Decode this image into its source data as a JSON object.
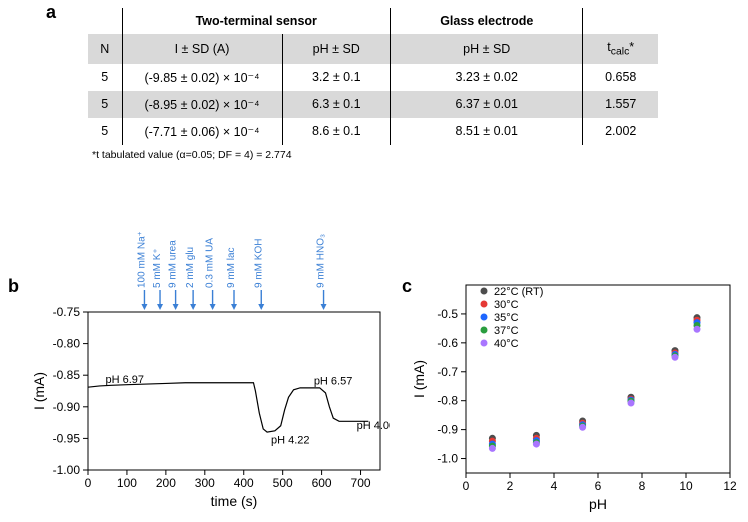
{
  "panel_labels": {
    "a": "a",
    "b": "b",
    "c": "c"
  },
  "table": {
    "top_headers": [
      "Two-terminal sensor",
      "Glass electrode",
      ""
    ],
    "sub_headers": [
      "N",
      "I ± SD (A)",
      "pH ± SD",
      "pH ± SD",
      "t_calc*"
    ],
    "rows": [
      {
        "N": "5",
        "I": "(-9.85 ± 0.02) × 10⁻⁴",
        "pH1": "3.2 ± 0.1",
        "pH2": "3.23 ± 0.02",
        "t": "0.658",
        "alt": false
      },
      {
        "N": "5",
        "I": "(-8.95 ± 0.02) × 10⁻⁴",
        "pH1": "6.3 ± 0.1",
        "pH2": "6.37 ± 0.01",
        "t": "1.557",
        "alt": true
      },
      {
        "N": "5",
        "I": "(-7.71 ± 0.06) × 10⁻⁴",
        "pH1": "8.6 ± 0.1",
        "pH2": "8.51 ± 0.01",
        "t": "2.002",
        "alt": false
      }
    ],
    "footnote": "*t tabulated value (α=0.05; DF = 4) = 2.774"
  },
  "chartB": {
    "type": "line",
    "xlabel": "time (s)",
    "ylabel": "I (mA)",
    "xlim": [
      0,
      750
    ],
    "xtick_step": 100,
    "ylim": [
      -1.0,
      -0.75
    ],
    "ytick_step": 0.05,
    "label_fontsize": 14,
    "tick_fontsize": 12,
    "line_color": "#000000",
    "background_color": "#ffffff",
    "injections": [
      {
        "label": "100 mM Na⁺",
        "t": 145
      },
      {
        "label": "5 mM K⁺",
        "t": 185
      },
      {
        "label": "9 mM urea",
        "t": 225
      },
      {
        "label": "2 mM glu",
        "t": 270
      },
      {
        "label": "0.3 mM UA",
        "t": 320
      },
      {
        "label": "9 mM lac",
        "t": 375
      },
      {
        "label": "9 mM KOH",
        "t": 445
      },
      {
        "label": "9 mM HNO₃",
        "t": 605
      }
    ],
    "arrow_color": "#3a7fd5",
    "annotations": [
      {
        "text": "pH 6.97",
        "t": 45,
        "I": -0.862
      },
      {
        "text": "pH 4.22",
        "t": 470,
        "I": -0.958
      },
      {
        "text": "pH 6.57",
        "t": 580,
        "I": -0.865
      },
      {
        "text": "pH 4.00",
        "t": 690,
        "I": -0.935
      }
    ],
    "series": [
      {
        "t": 0,
        "I": -0.869
      },
      {
        "t": 30,
        "I": -0.867
      },
      {
        "t": 60,
        "I": -0.866
      },
      {
        "t": 100,
        "I": -0.865
      },
      {
        "t": 150,
        "I": -0.864
      },
      {
        "t": 200,
        "I": -0.863
      },
      {
        "t": 250,
        "I": -0.862
      },
      {
        "t": 300,
        "I": -0.862
      },
      {
        "t": 350,
        "I": -0.862
      },
      {
        "t": 400,
        "I": -0.862
      },
      {
        "t": 425,
        "I": -0.862
      },
      {
        "t": 430,
        "I": -0.875
      },
      {
        "t": 440,
        "I": -0.91
      },
      {
        "t": 450,
        "I": -0.935
      },
      {
        "t": 460,
        "I": -0.94
      },
      {
        "t": 480,
        "I": -0.938
      },
      {
        "t": 495,
        "I": -0.93
      },
      {
        "t": 505,
        "I": -0.905
      },
      {
        "t": 515,
        "I": -0.885
      },
      {
        "t": 528,
        "I": -0.873
      },
      {
        "t": 545,
        "I": -0.87
      },
      {
        "t": 575,
        "I": -0.87
      },
      {
        "t": 595,
        "I": -0.87
      },
      {
        "t": 610,
        "I": -0.878
      },
      {
        "t": 620,
        "I": -0.9
      },
      {
        "t": 630,
        "I": -0.918
      },
      {
        "t": 645,
        "I": -0.923
      },
      {
        "t": 680,
        "I": -0.923
      },
      {
        "t": 720,
        "I": -0.923
      }
    ]
  },
  "chartC": {
    "type": "scatter",
    "xlabel": "pH",
    "ylabel": "I (mA)",
    "xlim": [
      0,
      12
    ],
    "xtick_step": 2,
    "ylim": [
      -1.05,
      -0.4
    ],
    "yticks": [
      -1.0,
      -0.9,
      -0.8,
      -0.7,
      -0.6,
      -0.5
    ],
    "label_fontsize": 14,
    "tick_fontsize": 12,
    "background_color": "#ffffff",
    "marker_size": 5,
    "legend_pos": "top-left-inside",
    "series": [
      {
        "name": "22°C (RT)",
        "color": "#4d4d4d",
        "points": [
          {
            "x": 1.2,
            "y": -0.93
          },
          {
            "x": 3.2,
            "y": -0.92
          },
          {
            "x": 5.3,
            "y": -0.87
          },
          {
            "x": 7.5,
            "y": -0.788
          },
          {
            "x": 9.5,
            "y": -0.627
          },
          {
            "x": 10.5,
            "y": -0.513
          }
        ]
      },
      {
        "name": "30°C",
        "color": "#e53935",
        "points": [
          {
            "x": 1.2,
            "y": -0.94
          },
          {
            "x": 3.2,
            "y": -0.93
          },
          {
            "x": 5.3,
            "y": -0.878
          },
          {
            "x": 7.5,
            "y": -0.795
          },
          {
            "x": 9.5,
            "y": -0.635
          },
          {
            "x": 10.5,
            "y": -0.522
          }
        ]
      },
      {
        "name": "35°C",
        "color": "#1e66ff",
        "points": [
          {
            "x": 1.2,
            "y": -0.95
          },
          {
            "x": 3.2,
            "y": -0.938
          },
          {
            "x": 5.3,
            "y": -0.883
          },
          {
            "x": 7.5,
            "y": -0.798
          },
          {
            "x": 9.5,
            "y": -0.64
          },
          {
            "x": 10.5,
            "y": -0.53
          }
        ]
      },
      {
        "name": "37°C",
        "color": "#2a9d3f",
        "points": [
          {
            "x": 1.2,
            "y": -0.957
          },
          {
            "x": 3.2,
            "y": -0.945
          },
          {
            "x": 5.3,
            "y": -0.888
          },
          {
            "x": 7.5,
            "y": -0.802
          },
          {
            "x": 9.5,
            "y": -0.645
          },
          {
            "x": 10.5,
            "y": -0.54
          }
        ]
      },
      {
        "name": "40°C",
        "color": "#a976ff",
        "points": [
          {
            "x": 1.2,
            "y": -0.965
          },
          {
            "x": 3.2,
            "y": -0.95
          },
          {
            "x": 5.3,
            "y": -0.892
          },
          {
            "x": 7.5,
            "y": -0.808
          },
          {
            "x": 9.5,
            "y": -0.65
          },
          {
            "x": 10.5,
            "y": -0.553
          }
        ]
      }
    ]
  }
}
